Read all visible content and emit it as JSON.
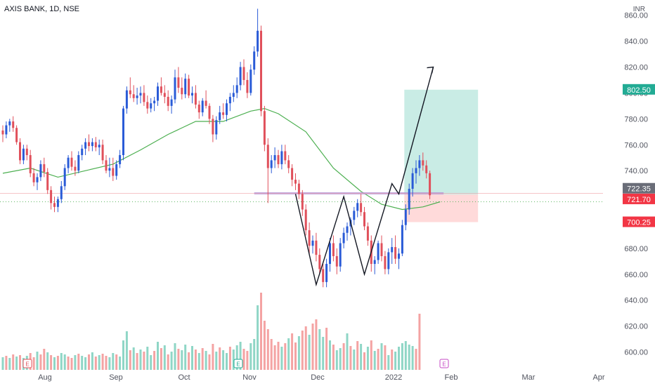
{
  "header": {
    "symbol": "AXIS BANK",
    "interval": "1D",
    "exchange": "NSE",
    "currency": "INR"
  },
  "colors": {
    "up": "#2a5bd7",
    "down": "#e0505b",
    "sma": "#4caf50",
    "vol_up": "#8fd6c6",
    "vol_down": "#f4a3a3",
    "target": "#b7e6dc",
    "stop": "#ffd4d4",
    "line": "#131722",
    "hline": "#b394d8",
    "badge_green": "#22ab94",
    "badge_red": "#f23645",
    "badge_gray": "#6a6d78"
  },
  "chart_data": {
    "type": "candlestick",
    "x_tick_labels": [
      "Aug",
      "Sep",
      "Oct",
      "Nov",
      "Dec",
      "2022",
      "Feb",
      "Mar",
      "Apr"
    ],
    "y_ticks": [
      "600.00",
      "620.00",
      "640.00",
      "660.00",
      "680.00",
      "700.00",
      "720.00",
      "740.00",
      "760.00",
      "780.00",
      "800.00",
      "820.00",
      "840.00",
      "860.00"
    ],
    "y_tick_values": [
      600,
      620,
      640,
      660,
      680,
      700,
      720,
      740,
      760,
      780,
      800,
      820,
      840,
      860
    ],
    "ylim": [
      590,
      862
    ],
    "candles": [
      [
        771,
        775,
        762,
        768
      ],
      [
        768,
        778,
        765,
        775
      ],
      [
        775,
        780,
        770,
        778
      ],
      [
        778,
        782,
        770,
        773
      ],
      [
        773,
        775,
        760,
        762
      ],
      [
        762,
        765,
        745,
        748
      ],
      [
        748,
        760,
        745,
        757
      ],
      [
        757,
        760,
        748,
        752
      ],
      [
        752,
        756,
        735,
        738
      ],
      [
        738,
        742,
        728,
        731
      ],
      [
        731,
        738,
        725,
        735
      ],
      [
        735,
        748,
        732,
        745
      ],
      [
        745,
        750,
        735,
        739
      ],
      [
        739,
        742,
        722,
        725
      ],
      [
        725,
        728,
        710,
        715
      ],
      [
        715,
        720,
        708,
        712
      ],
      [
        712,
        720,
        708,
        718
      ],
      [
        718,
        732,
        715,
        728
      ],
      [
        728,
        745,
        725,
        742
      ],
      [
        742,
        752,
        738,
        750
      ],
      [
        750,
        755,
        740,
        743
      ],
      [
        743,
        748,
        736,
        740
      ],
      [
        740,
        755,
        738,
        752
      ],
      [
        752,
        760,
        748,
        757
      ],
      [
        757,
        765,
        752,
        762
      ],
      [
        762,
        768,
        755,
        759
      ],
      [
        759,
        765,
        755,
        762
      ],
      [
        762,
        766,
        755,
        758
      ],
      [
        758,
        764,
        752,
        760
      ],
      [
        760,
        764,
        745,
        748
      ],
      [
        748,
        752,
        738,
        740
      ],
      [
        740,
        750,
        735,
        742
      ],
      [
        742,
        750,
        732,
        736
      ],
      [
        736,
        748,
        733,
        745
      ],
      [
        745,
        756,
        742,
        752
      ],
      [
        752,
        790,
        748,
        788
      ],
      [
        788,
        805,
        784,
        802
      ],
      [
        802,
        812,
        796,
        799
      ],
      [
        799,
        806,
        793,
        796
      ],
      [
        796,
        804,
        791,
        798
      ],
      [
        798,
        805,
        792,
        800
      ],
      [
        800,
        806,
        790,
        793
      ],
      [
        793,
        798,
        784,
        788
      ],
      [
        788,
        796,
        785,
        792
      ],
      [
        792,
        797,
        786,
        794
      ],
      [
        794,
        808,
        790,
        805
      ],
      [
        805,
        812,
        798,
        800
      ],
      [
        800,
        806,
        792,
        797
      ],
      [
        797,
        802,
        786,
        790
      ],
      [
        790,
        798,
        784,
        795
      ],
      [
        795,
        818,
        792,
        812
      ],
      [
        812,
        820,
        800,
        804
      ],
      [
        804,
        812,
        795,
        799
      ],
      [
        799,
        815,
        796,
        811
      ],
      [
        811,
        814,
        796,
        798
      ],
      [
        798,
        805,
        792,
        800
      ],
      [
        800,
        806,
        788,
        791
      ],
      [
        791,
        794,
        780,
        785
      ],
      [
        785,
        796,
        782,
        794
      ],
      [
        794,
        802,
        788,
        790
      ],
      [
        790,
        792,
        776,
        780
      ],
      [
        780,
        783,
        762,
        768
      ],
      [
        768,
        782,
        764,
        779
      ],
      [
        779,
        790,
        776,
        785
      ],
      [
        785,
        792,
        780,
        783
      ],
      [
        783,
        795,
        778,
        792
      ],
      [
        792,
        800,
        786,
        797
      ],
      [
        797,
        806,
        793,
        800
      ],
      [
        800,
        812,
        796,
        806
      ],
      [
        806,
        824,
        802,
        820
      ],
      [
        820,
        826,
        806,
        810
      ],
      [
        810,
        816,
        796,
        800
      ],
      [
        800,
        822,
        798,
        818
      ],
      [
        818,
        836,
        814,
        832
      ],
      [
        832,
        865,
        828,
        848
      ],
      [
        848,
        852,
        782,
        786
      ],
      [
        786,
        790,
        755,
        760
      ],
      [
        760,
        765,
        715,
        742
      ],
      [
        742,
        752,
        738,
        748
      ],
      [
        748,
        758,
        742,
        752
      ],
      [
        752,
        756,
        742,
        745
      ],
      [
        745,
        760,
        741,
        755
      ],
      [
        755,
        760,
        745,
        748
      ],
      [
        748,
        752,
        738,
        742
      ],
      [
        742,
        745,
        728,
        733
      ],
      [
        733,
        738,
        725,
        730
      ],
      [
        730,
        733,
        718,
        722
      ],
      [
        722,
        725,
        705,
        710
      ],
      [
        710,
        714,
        690,
        694
      ],
      [
        694,
        700,
        676,
        682
      ],
      [
        682,
        690,
        676,
        686
      ],
      [
        686,
        692,
        670,
        675
      ],
      [
        675,
        680,
        660,
        664
      ],
      [
        664,
        668,
        650,
        654
      ],
      [
        654,
        672,
        650,
        668
      ],
      [
        668,
        688,
        662,
        684
      ],
      [
        684,
        690,
        670,
        674
      ],
      [
        674,
        680,
        660,
        666
      ],
      [
        666,
        688,
        662,
        684
      ],
      [
        684,
        696,
        680,
        692
      ],
      [
        692,
        700,
        686,
        697
      ],
      [
        697,
        704,
        690,
        702
      ],
      [
        702,
        712,
        698,
        709
      ],
      [
        709,
        718,
        704,
        715
      ],
      [
        715,
        722,
        705,
        708
      ],
      [
        708,
        712,
        694,
        697
      ],
      [
        697,
        700,
        682,
        686
      ],
      [
        686,
        690,
        662,
        668
      ],
      [
        668,
        674,
        660,
        671
      ],
      [
        671,
        686,
        668,
        684
      ],
      [
        684,
        690,
        670,
        674
      ],
      [
        674,
        678,
        660,
        664
      ],
      [
        664,
        680,
        660,
        677
      ],
      [
        677,
        688,
        668,
        681
      ],
      [
        681,
        690,
        668,
        672
      ],
      [
        672,
        680,
        664,
        676
      ],
      [
        676,
        702,
        674,
        698
      ],
      [
        698,
        714,
        694,
        710
      ],
      [
        710,
        730,
        706,
        726
      ],
      [
        726,
        742,
        720,
        738
      ],
      [
        738,
        748,
        730,
        742
      ],
      [
        742,
        752,
        736,
        748
      ],
      [
        748,
        754,
        740,
        744
      ],
      [
        744,
        748,
        734,
        738
      ],
      [
        738,
        740,
        718,
        721
      ]
    ],
    "volume": [
      [
        18,
        1
      ],
      [
        20,
        0
      ],
      [
        17,
        1
      ],
      [
        22,
        0
      ],
      [
        19,
        1
      ],
      [
        21,
        0
      ],
      [
        17,
        1
      ],
      [
        20,
        1
      ],
      [
        24,
        0
      ],
      [
        18,
        0
      ],
      [
        26,
        1
      ],
      [
        22,
        0
      ],
      [
        30,
        0
      ],
      [
        25,
        1
      ],
      [
        21,
        0
      ],
      [
        18,
        1
      ],
      [
        20,
        0
      ],
      [
        24,
        1
      ],
      [
        22,
        1
      ],
      [
        19,
        0
      ],
      [
        17,
        0
      ],
      [
        21,
        1
      ],
      [
        23,
        0
      ],
      [
        20,
        1
      ],
      [
        18,
        1
      ],
      [
        22,
        0
      ],
      [
        25,
        1
      ],
      [
        19,
        0
      ],
      [
        21,
        1
      ],
      [
        23,
        0
      ],
      [
        20,
        0
      ],
      [
        18,
        1
      ],
      [
        24,
        1
      ],
      [
        22,
        0
      ],
      [
        19,
        1
      ],
      [
        42,
        1
      ],
      [
        55,
        1
      ],
      [
        28,
        0
      ],
      [
        32,
        1
      ],
      [
        24,
        0
      ],
      [
        29,
        1
      ],
      [
        26,
        0
      ],
      [
        33,
        1
      ],
      [
        21,
        1
      ],
      [
        27,
        0
      ],
      [
        40,
        1
      ],
      [
        31,
        0
      ],
      [
        35,
        1
      ],
      [
        22,
        0
      ],
      [
        26,
        1
      ],
      [
        38,
        1
      ],
      [
        30,
        0
      ],
      [
        28,
        1
      ],
      [
        36,
        1
      ],
      [
        25,
        0
      ],
      [
        34,
        1
      ],
      [
        29,
        0
      ],
      [
        24,
        1
      ],
      [
        31,
        0
      ],
      [
        27,
        1
      ],
      [
        22,
        0
      ],
      [
        37,
        0
      ],
      [
        26,
        1
      ],
      [
        32,
        0
      ],
      [
        28,
        1
      ],
      [
        24,
        1
      ],
      [
        33,
        0
      ],
      [
        29,
        1
      ],
      [
        35,
        1
      ],
      [
        40,
        1
      ],
      [
        30,
        0
      ],
      [
        27,
        0
      ],
      [
        38,
        1
      ],
      [
        44,
        1
      ],
      [
        92,
        1
      ],
      [
        110,
        0
      ],
      [
        70,
        0
      ],
      [
        58,
        0
      ],
      [
        44,
        0
      ],
      [
        35,
        0
      ],
      [
        40,
        0
      ],
      [
        33,
        1
      ],
      [
        38,
        0
      ],
      [
        45,
        1
      ],
      [
        52,
        0
      ],
      [
        39,
        0
      ],
      [
        48,
        1
      ],
      [
        56,
        0
      ],
      [
        62,
        0
      ],
      [
        50,
        1
      ],
      [
        66,
        0
      ],
      [
        72,
        0
      ],
      [
        58,
        1
      ],
      [
        47,
        1
      ],
      [
        60,
        0
      ],
      [
        42,
        1
      ],
      [
        36,
        0
      ],
      [
        28,
        1
      ],
      [
        31,
        1
      ],
      [
        38,
        0
      ],
      [
        52,
        1
      ],
      [
        34,
        0
      ],
      [
        29,
        1
      ],
      [
        41,
        0
      ],
      [
        37,
        1
      ],
      [
        25,
        0
      ],
      [
        33,
        1
      ],
      [
        42,
        0
      ],
      [
        27,
        1
      ],
      [
        30,
        0
      ],
      [
        38,
        1
      ],
      [
        35,
        0
      ],
      [
        21,
        1
      ],
      [
        29,
        0
      ],
      [
        26,
        1
      ],
      [
        33,
        1
      ],
      [
        38,
        1
      ],
      [
        41,
        1
      ],
      [
        36,
        1
      ],
      [
        34,
        1
      ],
      [
        30,
        0
      ],
      [
        80,
        0
      ]
    ],
    "volume_max_ref": 140,
    "sma": [
      [
        0,
        738
      ],
      [
        8,
        742
      ],
      [
        16,
        735
      ],
      [
        24,
        740
      ],
      [
        32,
        745
      ],
      [
        40,
        756
      ],
      [
        48,
        768
      ],
      [
        56,
        778
      ],
      [
        64,
        778
      ],
      [
        72,
        786
      ],
      [
        76,
        788
      ],
      [
        80,
        784
      ],
      [
        88,
        770
      ],
      [
        96,
        742
      ],
      [
        104,
        724
      ],
      [
        110,
        714
      ],
      [
        116,
        710
      ],
      [
        122,
        712
      ],
      [
        127,
        716
      ]
    ],
    "pattern_points": [
      [
        85,
        722
      ],
      [
        91,
        652
      ],
      [
        99,
        720
      ],
      [
        105,
        660
      ],
      [
        113,
        730
      ],
      [
        115,
        722
      ],
      [
        125,
        820
      ]
    ],
    "position": {
      "start_index": 117,
      "end_index": 138,
      "target": 802.5,
      "entry": 721.7,
      "stop": 700.25
    },
    "resistance_line": {
      "from_index": 73,
      "to_index": 128,
      "value": 722.5
    },
    "current_price_line": 722.35,
    "dotted_line": 716,
    "price_labels": {
      "target": "802.50",
      "current": "722.35",
      "entry": "721.70",
      "stop": "700.25"
    }
  }
}
